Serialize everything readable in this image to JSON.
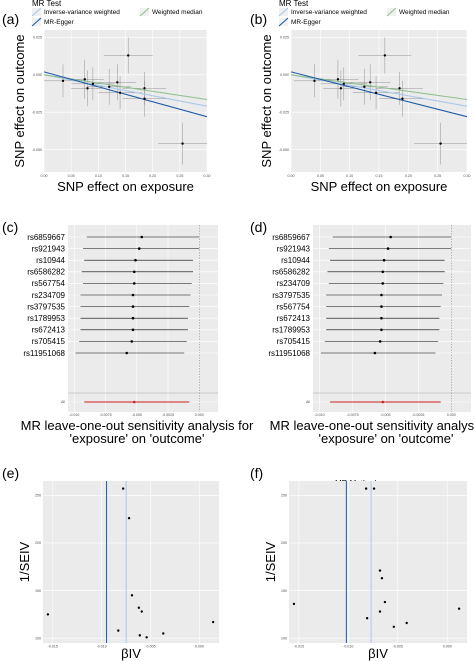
{
  "legend_scatter": {
    "title": "MR Test",
    "items": [
      {
        "label": "Inverse-variance weighted",
        "color": "#a9c9ea"
      },
      {
        "label": "Weighted median",
        "color": "#8fbf8f"
      },
      {
        "label": "MR-Egger",
        "color": "#1e5aa8"
      }
    ]
  },
  "legend_funnel": {
    "title": "MR Method",
    "items": [
      {
        "label": "Inverse-variance weighted",
        "color": "#a9c9ea"
      },
      {
        "label": "MR-Egger",
        "color": "#1e5aa8"
      }
    ]
  },
  "chart_data": [
    {
      "panel": "(a)",
      "type": "scatter",
      "xlabel": "SNP effect on exposure",
      "ylabel": "SNP effect on outcome",
      "xlim": [
        0.0,
        0.3
      ],
      "ylim": [
        -0.065,
        0.03
      ],
      "x_ticks": [
        "0.00",
        "0.05",
        "0.10",
        "0.15",
        "0.20",
        "0.25",
        "0.30"
      ],
      "y_ticks": [
        "0.025",
        "0.000",
        "-0.025",
        "-0.050"
      ],
      "grid": true,
      "points": [
        {
          "x": 0.035,
          "y": -0.004,
          "xerr": 0.035,
          "yerr": 0.011
        },
        {
          "x": 0.075,
          "y": -0.003,
          "xerr": 0.035,
          "yerr": 0.013
        },
        {
          "x": 0.08,
          "y": -0.009,
          "xerr": 0.03,
          "yerr": 0.012
        },
        {
          "x": 0.09,
          "y": -0.006,
          "xerr": 0.04,
          "yerr": 0.011
        },
        {
          "x": 0.12,
          "y": -0.008,
          "xerr": 0.04,
          "yerr": 0.012
        },
        {
          "x": 0.135,
          "y": -0.005,
          "xerr": 0.035,
          "yerr": 0.012
        },
        {
          "x": 0.14,
          "y": -0.012,
          "xerr": 0.04,
          "yerr": 0.011
        },
        {
          "x": 0.155,
          "y": 0.013,
          "xerr": 0.045,
          "yerr": 0.012
        },
        {
          "x": 0.185,
          "y": -0.009,
          "xerr": 0.04,
          "yerr": 0.011
        },
        {
          "x": 0.185,
          "y": -0.016,
          "xerr": 0.04,
          "yerr": 0.012
        },
        {
          "x": 0.255,
          "y": -0.046,
          "xerr": 0.045,
          "yerr": 0.014
        }
      ],
      "lines": [
        {
          "method": "Inverse-variance weighted",
          "color": "#a9c9ea",
          "intercept": 0,
          "slope": -0.07
        },
        {
          "method": "Weighted median",
          "color": "#8fbf8f",
          "intercept": 0,
          "slope": -0.055
        },
        {
          "method": "MR-Egger",
          "color": "#1e5aa8",
          "intercept": 0.002,
          "slope": -0.1
        }
      ]
    },
    {
      "panel": "(b)",
      "type": "scatter",
      "xlabel": "SNP effect on exposure",
      "ylabel": "SNP effect on outcome",
      "xlim": [
        0.0,
        0.3
      ],
      "ylim": [
        -0.065,
        0.03
      ],
      "x_ticks": [
        "0.00",
        "0.05",
        "0.10",
        "0.15",
        "0.20",
        "0.25",
        "0.30"
      ],
      "y_ticks": [
        "0.025",
        "0.000",
        "-0.025",
        "-0.050"
      ],
      "grid": true,
      "points": [
        {
          "x": 0.04,
          "y": -0.004,
          "xerr": 0.035,
          "yerr": 0.011
        },
        {
          "x": 0.08,
          "y": -0.003,
          "xerr": 0.035,
          "yerr": 0.013
        },
        {
          "x": 0.085,
          "y": -0.009,
          "xerr": 0.03,
          "yerr": 0.012
        },
        {
          "x": 0.09,
          "y": -0.006,
          "xerr": 0.04,
          "yerr": 0.011
        },
        {
          "x": 0.125,
          "y": -0.008,
          "xerr": 0.04,
          "yerr": 0.012
        },
        {
          "x": 0.135,
          "y": -0.005,
          "xerr": 0.035,
          "yerr": 0.012
        },
        {
          "x": 0.145,
          "y": -0.012,
          "xerr": 0.04,
          "yerr": 0.011
        },
        {
          "x": 0.16,
          "y": 0.013,
          "xerr": 0.045,
          "yerr": 0.012
        },
        {
          "x": 0.185,
          "y": -0.009,
          "xerr": 0.04,
          "yerr": 0.011
        },
        {
          "x": 0.19,
          "y": -0.016,
          "xerr": 0.04,
          "yerr": 0.012
        },
        {
          "x": 0.255,
          "y": -0.046,
          "xerr": 0.045,
          "yerr": 0.014
        }
      ],
      "lines": [
        {
          "method": "Inverse-variance weighted",
          "color": "#a9c9ea",
          "intercept": 0,
          "slope": -0.07
        },
        {
          "method": "Weighted median",
          "color": "#8fbf8f",
          "intercept": 0,
          "slope": -0.055
        },
        {
          "method": "MR-Egger",
          "color": "#1e5aa8",
          "intercept": 0.002,
          "slope": -0.1
        }
      ]
    },
    {
      "panel": "(c)",
      "type": "forest",
      "xlabel": "MR leave-one-out sensitivity analysis for\n'exposure' on 'outcome'",
      "xlim": [
        -0.0105,
        0.0015
      ],
      "x_ticks": [
        "-0.010",
        "-0.0075",
        "-0.005",
        "-0.0025",
        "0.000"
      ],
      "grid": true,
      "refline": 0,
      "rows": [
        {
          "label": "rs6859667",
          "est": -0.0046,
          "lo": -0.009,
          "hi": 0.0
        },
        {
          "label": "rs921943",
          "est": -0.0048,
          "lo": -0.0093,
          "hi": 0.0
        },
        {
          "label": "rs10944",
          "est": -0.0051,
          "lo": -0.0092,
          "hi": -0.0005
        },
        {
          "label": "rs6586282",
          "est": -0.0052,
          "lo": -0.0094,
          "hi": -0.0005
        },
        {
          "label": "rs567754",
          "est": -0.0052,
          "lo": -0.0093,
          "hi": -0.0006
        },
        {
          "label": "rs234709",
          "est": -0.0053,
          "lo": -0.0095,
          "hi": -0.0007
        },
        {
          "label": "rs3797535",
          "est": -0.0053,
          "lo": -0.0095,
          "hi": -0.0008
        },
        {
          "label": "rs1789953",
          "est": -0.0053,
          "lo": -0.0095,
          "hi": -0.0009
        },
        {
          "label": "rs672413",
          "est": -0.0053,
          "lo": -0.0095,
          "hi": -0.0009
        },
        {
          "label": "rs705415",
          "est": -0.0054,
          "lo": -0.0096,
          "hi": -0.001
        },
        {
          "label": "rs11951068",
          "est": -0.0058,
          "lo": -0.0099,
          "hi": -0.0012
        }
      ],
      "overall": {
        "label": "All",
        "est": -0.0052,
        "lo": -0.0092,
        "hi": -0.0008,
        "color": "#cc2020"
      }
    },
    {
      "panel": "(d)",
      "type": "forest",
      "xlabel": "MR leave-one-out sensitivity analysis for\n'exposure' on 'outcome'",
      "xlim": [
        -0.0105,
        0.0015
      ],
      "x_ticks": [
        "-0.010",
        "-0.0075",
        "-0.005",
        "-0.0025",
        "0.000"
      ],
      "grid": true,
      "refline": 0,
      "rows": [
        {
          "label": "rs6859667",
          "est": -0.0046,
          "lo": -0.009,
          "hi": 0.0
        },
        {
          "label": "rs921943",
          "est": -0.0048,
          "lo": -0.0093,
          "hi": 0.0
        },
        {
          "label": "rs10944",
          "est": -0.0051,
          "lo": -0.0092,
          "hi": -0.0005
        },
        {
          "label": "rs6586282",
          "est": -0.0052,
          "lo": -0.0094,
          "hi": -0.0005
        },
        {
          "label": "rs234709",
          "est": -0.0052,
          "lo": -0.0093,
          "hi": -0.0006
        },
        {
          "label": "rs3797535",
          "est": -0.0053,
          "lo": -0.0095,
          "hi": -0.0007
        },
        {
          "label": "rs567754",
          "est": -0.0053,
          "lo": -0.0095,
          "hi": -0.0008
        },
        {
          "label": "rs672413",
          "est": -0.0053,
          "lo": -0.0095,
          "hi": -0.0009
        },
        {
          "label": "rs1789953",
          "est": -0.0053,
          "lo": -0.0095,
          "hi": -0.0009
        },
        {
          "label": "rs705415",
          "est": -0.0054,
          "lo": -0.0096,
          "hi": -0.001
        },
        {
          "label": "rs11951068",
          "est": -0.0058,
          "lo": -0.0099,
          "hi": -0.0012
        }
      ],
      "overall": {
        "label": "All",
        "est": -0.0052,
        "lo": -0.0092,
        "hi": -0.0008,
        "color": "#cc2020"
      }
    },
    {
      "panel": "(e)",
      "type": "scatter",
      "xlabel": "βIV",
      "ylabel": "1/SEIV",
      "xlim": [
        -0.016,
        0.002
      ],
      "ylim": [
        95,
        265
      ],
      "x_ticks": [
        "-0.015",
        "-0.010",
        "-0.005",
        "0.000"
      ],
      "y_ticks": [
        "250",
        "200",
        "150",
        "100"
      ],
      "grid": true,
      "vlines": [
        {
          "method": "Inverse-variance weighted",
          "x": -0.0075,
          "color": "#a9c9ea"
        },
        {
          "method": "MR-Egger",
          "x": -0.0095,
          "color": "#1e5aa8"
        }
      ],
      "points": [
        {
          "x": -0.0155,
          "y": 125
        },
        {
          "x": -0.0078,
          "y": 257
        },
        {
          "x": -0.0072,
          "y": 226
        },
        {
          "x": -0.0069,
          "y": 145
        },
        {
          "x": -0.0062,
          "y": 132
        },
        {
          "x": -0.0059,
          "y": 128
        },
        {
          "x": -0.0083,
          "y": 108
        },
        {
          "x": -0.0061,
          "y": 103
        },
        {
          "x": -0.0054,
          "y": 101
        },
        {
          "x": -0.0037,
          "y": 105
        },
        {
          "x": 0.0014,
          "y": 117
        }
      ]
    },
    {
      "panel": "(f)",
      "type": "scatter",
      "xlabel": "βIV",
      "ylabel": "1/SEIV",
      "xlim": [
        -0.016,
        0.002
      ],
      "ylim": [
        95,
        265
      ],
      "x_ticks": [
        "-0.015",
        "-0.010",
        "-0.005",
        "0.000"
      ],
      "y_ticks": [
        "250",
        "200",
        "150",
        "100"
      ],
      "grid": true,
      "vlines": [
        {
          "method": "Inverse-variance weighted",
          "x": -0.0077,
          "color": "#a9c9ea"
        },
        {
          "method": "MR-Egger",
          "x": -0.0102,
          "color": "#1e5aa8"
        }
      ],
      "points": [
        {
          "x": -0.0155,
          "y": 136
        },
        {
          "x": -0.0082,
          "y": 257
        },
        {
          "x": -0.0074,
          "y": 257
        },
        {
          "x": -0.0068,
          "y": 171
        },
        {
          "x": -0.0066,
          "y": 163
        },
        {
          "x": -0.0063,
          "y": 138
        },
        {
          "x": -0.0081,
          "y": 121
        },
        {
          "x": -0.0068,
          "y": 128
        },
        {
          "x": -0.0054,
          "y": 112
        },
        {
          "x": -0.0041,
          "y": 116
        },
        {
          "x": 0.0012,
          "y": 131
        }
      ]
    }
  ]
}
